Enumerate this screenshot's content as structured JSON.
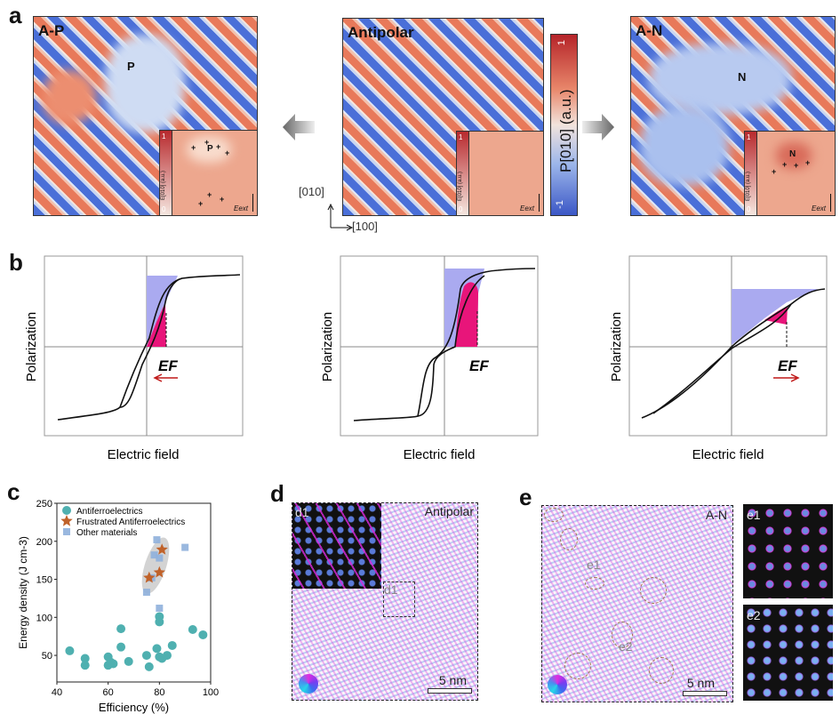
{
  "panel_labels": {
    "a": "a",
    "b": "b",
    "c": "c",
    "d": "d",
    "e": "e"
  },
  "panel_a": {
    "maps": [
      {
        "title": "A-P",
        "domain": "P"
      },
      {
        "title": "Antipolar"
      },
      {
        "title": "A-N",
        "domain": "N"
      }
    ],
    "inset": {
      "cb_label": "E[010] (a.u.)",
      "cb_max": "1",
      "cb_min": "0",
      "field": "Eext"
    },
    "colorbar": {
      "label": "P[010] (a.u.)",
      "max": "1",
      "min": "-1"
    },
    "axes": {
      "y": "[010]",
      "x": "[100]"
    }
  },
  "panel_b": {
    "ylabel": "Polarization",
    "xlabel": "Electric field",
    "ef": "EF"
  },
  "chart_data": {
    "type": "scatter",
    "xlabel": "Efficiency (%)",
    "ylabel": "Energy density (J cm-3)",
    "xlim": [
      40,
      100
    ],
    "ylim": [
      15,
      250
    ],
    "xticks": [
      40,
      60,
      80,
      100
    ],
    "yticks": [
      50,
      100,
      150,
      200,
      250
    ],
    "legend_position": "top-left",
    "series": [
      {
        "name": "Antiferroelectrics",
        "marker": "circle",
        "color": "#4fb0b0",
        "points": [
          [
            45,
            56
          ],
          [
            51,
            46
          ],
          [
            51,
            37
          ],
          [
            60,
            48
          ],
          [
            60,
            37
          ],
          [
            61,
            41
          ],
          [
            62,
            39
          ],
          [
            65,
            85
          ],
          [
            65,
            61
          ],
          [
            68,
            42
          ],
          [
            75,
            50
          ],
          [
            76,
            35
          ],
          [
            79,
            59
          ],
          [
            80,
            101
          ],
          [
            80,
            94
          ],
          [
            80,
            48
          ],
          [
            81,
            46
          ],
          [
            83,
            50
          ],
          [
            85,
            63
          ],
          [
            93,
            84
          ],
          [
            97,
            77
          ]
        ]
      },
      {
        "name": "Frustrated Antiferroelectrics",
        "marker": "star",
        "color": "#c0622a",
        "points": [
          [
            76,
            152
          ],
          [
            80,
            159
          ],
          [
            81,
            189
          ]
        ]
      },
      {
        "name": "Other materials",
        "marker": "square",
        "color": "#8fb0dc",
        "points": [
          [
            75,
            133
          ],
          [
            77,
            152
          ],
          [
            78,
            182
          ],
          [
            79,
            202
          ],
          [
            80,
            178
          ],
          [
            80,
            112
          ],
          [
            90,
            192
          ]
        ]
      }
    ]
  },
  "panel_d": {
    "label": "Antipolar",
    "inset": "d1",
    "box": "d1",
    "scale": "5 nm"
  },
  "panel_e": {
    "label": "A-N",
    "region1": "e1",
    "region2": "e2",
    "scale": "5 nm",
    "inset1": "e1",
    "inset2": "e2"
  }
}
